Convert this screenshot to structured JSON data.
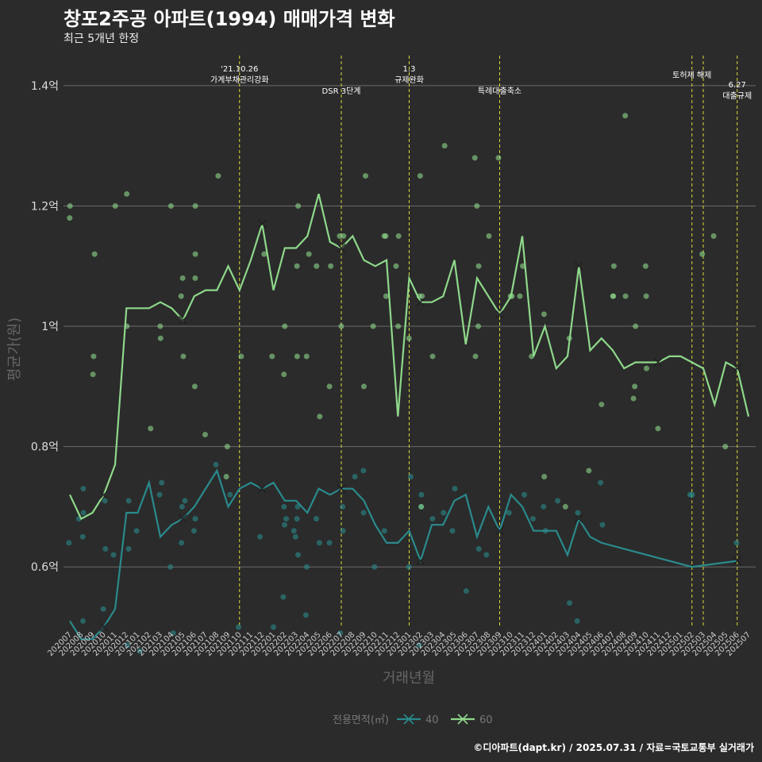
{
  "title": "창포2주공 아파트(1994) 매매가격 변화",
  "subtitle": "최근 5개년 한정",
  "caption": "©디아파트(dapt.kr) / 2025.07.31 / 자료=국토교통부 실거래가",
  "chart_data": {
    "type": "line",
    "xlabel": "거래년월",
    "ylabel": "평균가(원)",
    "ylim": [
      0.5,
      1.45
    ],
    "yticks": [
      {
        "value": 0.6,
        "label": "0.6억"
      },
      {
        "value": 0.8,
        "label": "0.8억"
      },
      {
        "value": 1.0,
        "label": "1억"
      },
      {
        "value": 1.2,
        "label": "1.2억"
      },
      {
        "value": 1.4,
        "label": "1.4억"
      }
    ],
    "grid": true,
    "legend_position": "bottom",
    "legend_title": "전용면적(㎡)",
    "categories": [
      "202007",
      "202008",
      "202009",
      "202010",
      "202011",
      "202012",
      "202101",
      "202102",
      "202103",
      "202104",
      "202105",
      "202106",
      "202107",
      "202108",
      "202109",
      "202110",
      "202111",
      "202112",
      "202201",
      "202202",
      "202203",
      "202204",
      "202205",
      "202206",
      "202207",
      "202208",
      "202209",
      "202210",
      "202211",
      "202212",
      "202301",
      "202302",
      "202303",
      "202304",
      "202305",
      "202306",
      "202307",
      "202308",
      "202309",
      "202310",
      "202311",
      "202312",
      "202401",
      "202402",
      "202403",
      "202404",
      "202405",
      "202406",
      "202407",
      "202408",
      "202409",
      "202410",
      "202411",
      "202412",
      "202501",
      "202502",
      "202503",
      "202504",
      "202505",
      "202506",
      "202507"
    ],
    "annotations": [
      {
        "x": "202110",
        "label": "'21.10.26\n가계부채관리강화"
      },
      {
        "x": "202207",
        "label": "DSR 3단계"
      },
      {
        "x": "202301",
        "label": "1.3\n규제완화"
      },
      {
        "x": "202309",
        "label": "특례대출축소"
      },
      {
        "x": "202502",
        "label": "토허제 해제"
      },
      {
        "x": "202503",
        "label": ""
      },
      {
        "x": "202506",
        "label": "6.27\n대출규제"
      }
    ],
    "series": [
      {
        "name": "40",
        "color": "#2a8a8c",
        "values": [
          0.51,
          0.48,
          0.48,
          0.5,
          0.53,
          0.69,
          0.69,
          0.74,
          0.65,
          0.67,
          0.68,
          0.7,
          0.73,
          0.76,
          0.7,
          0.73,
          0.74,
          0.73,
          0.74,
          0.71,
          0.71,
          0.69,
          0.73,
          0.72,
          0.73,
          0.73,
          0.71,
          0.67,
          0.64,
          0.64,
          0.66,
          0.61,
          0.67,
          0.67,
          0.71,
          0.72,
          0.65,
          0.7,
          0.66,
          0.72,
          0.7,
          0.66,
          0.66,
          0.66,
          0.62,
          0.68,
          0.65,
          0.64,
          null,
          null,
          null,
          null,
          null,
          null,
          null,
          0.6,
          null,
          null,
          null,
          0.61,
          null
        ],
        "scatter": [
          0.54,
          0.53,
          0.51,
          0.5,
          0.47,
          0.46,
          0.55,
          0.49,
          0.47,
          0.5,
          0.51,
          0.49,
          0.52,
          0.6,
          0.56,
          0.62,
          0.66,
          0.64,
          0.7,
          0.69,
          0.67,
          0.68,
          0.65,
          0.64,
          0.66,
          0.68,
          0.72,
          0.71,
          0.73,
          0.75,
          0.77,
          0.72,
          0.72,
          0.71,
          0.74,
          0.76,
          0.73,
          0.7,
          0.69,
          0.71,
          0.7,
          0.72,
          0.68,
          0.75,
          0.74,
          0.71,
          0.69,
          0.7,
          0.69,
          0.68,
          0.66,
          0.64,
          0.6,
          0.62,
          0.63,
          0.66,
          0.65,
          0.6,
          0.67,
          0.68,
          0.72,
          0.69,
          0.7,
          0.65,
          0.68,
          0.66,
          0.72,
          0.7,
          0.66,
          0.64,
          0.63,
          0.6,
          0.66,
          0.62,
          0.68,
          0.64,
          0.63
        ]
      },
      {
        "name": "60",
        "color": "#8ed88a",
        "values": [
          0.72,
          0.68,
          0.69,
          0.72,
          0.77,
          1.03,
          1.03,
          1.03,
          1.04,
          1.03,
          1.01,
          1.05,
          1.06,
          1.06,
          1.1,
          1.06,
          1.11,
          1.17,
          1.06,
          1.13,
          1.13,
          1.15,
          1.22,
          1.14,
          1.13,
          1.15,
          1.11,
          1.1,
          1.11,
          0.85,
          1.08,
          1.04,
          1.04,
          1.05,
          1.11,
          0.97,
          1.08,
          1.05,
          1.02,
          1.05,
          1.15,
          0.95,
          1.0,
          0.93,
          0.95,
          1.1,
          0.96,
          0.98,
          0.96,
          0.93,
          0.94,
          0.94,
          0.94,
          0.95,
          0.95,
          0.94,
          0.93,
          0.87,
          0.94,
          0.93,
          0.85
        ],
        "scatter": [
          0.83,
          0.7,
          0.75,
          0.76,
          0.7,
          0.82,
          0.9,
          1.2,
          1.1,
          1.02,
          1.2,
          1.15,
          1.05,
          0.98,
          1.15,
          1.1,
          1.05,
          1.18,
          1.12,
          1.2,
          1.1,
          1.0,
          1.15,
          1.25,
          1.05,
          1.12,
          1.22,
          1.28,
          1.05,
          1.1,
          1.2,
          1.25,
          1.3,
          1.15,
          1.35,
          1.0,
          1.12,
          1.2,
          1.28,
          1.05,
          1.15,
          1.1,
          1.25,
          0.95,
          1.2,
          1.08,
          1.15,
          1.05,
          1.1,
          1.0,
          0.95,
          1.12,
          1.15,
          1.05,
          1.0,
          0.95,
          0.92,
          1.1,
          1.05,
          1.0,
          1.12,
          1.05,
          0.95,
          1.0,
          1.1,
          0.95,
          1.08,
          1.05,
          1.0,
          0.98,
          1.05,
          0.95,
          0.9,
          0.98,
          0.95,
          1.0,
          0.92,
          0.9,
          0.95,
          0.88,
          0.93,
          0.95,
          0.9,
          0.8,
          0.75,
          0.85,
          0.8,
          0.83,
          0.87
        ]
      }
    ]
  }
}
